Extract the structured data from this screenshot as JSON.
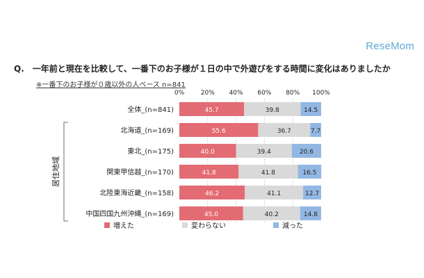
{
  "watermark": "ReseMom",
  "question": {
    "prefix": "Q.",
    "text": "一年前と現在を比較して、一番下のお子様が１日の中で外遊びをする時間に変化はありましたか"
  },
  "note": "※一番下のお子様が０歳以外の人ベース  n=841",
  "colors": {
    "increased": "#e36b73",
    "unchanged": "#d9d9d9",
    "decreased": "#92b7e3"
  },
  "chart_data": {
    "type": "bar",
    "orientation": "horizontal",
    "stacked": true,
    "percent": true,
    "xlim": [
      0,
      100
    ],
    "xticks": [
      "0%",
      "20%",
      "40%",
      "60%",
      "80%",
      "100%"
    ],
    "ylabel": "居住地域",
    "categories": [
      "全体_(n=841)",
      "北海道_(n=169)",
      "東北_(n=175)",
      "関東甲信越_(n=170)",
      "北陸東海近畿_(n=158)",
      "中国四国九州沖縄_(n=169)"
    ],
    "series": [
      {
        "name": "増えた",
        "values": [
          45.7,
          55.6,
          40.0,
          41.8,
          46.2,
          45.0
        ]
      },
      {
        "name": "変わらない",
        "values": [
          39.8,
          36.7,
          39.4,
          41.8,
          41.1,
          40.2
        ]
      },
      {
        "name": "減った",
        "values": [
          14.5,
          7.7,
          20.6,
          16.5,
          12.7,
          14.8
        ]
      }
    ],
    "value_labels": [
      [
        "45.7",
        "39.8",
        "14.5"
      ],
      [
        "55.6",
        "36.7",
        "7.7"
      ],
      [
        "40.0",
        "39.4",
        "20.6"
      ],
      [
        "41.8",
        "41.8",
        "16.5"
      ],
      [
        "46.2",
        "41.1",
        "12.7"
      ],
      [
        "45.0",
        "40.2",
        "14.8"
      ]
    ],
    "legend_position": "bottom"
  }
}
